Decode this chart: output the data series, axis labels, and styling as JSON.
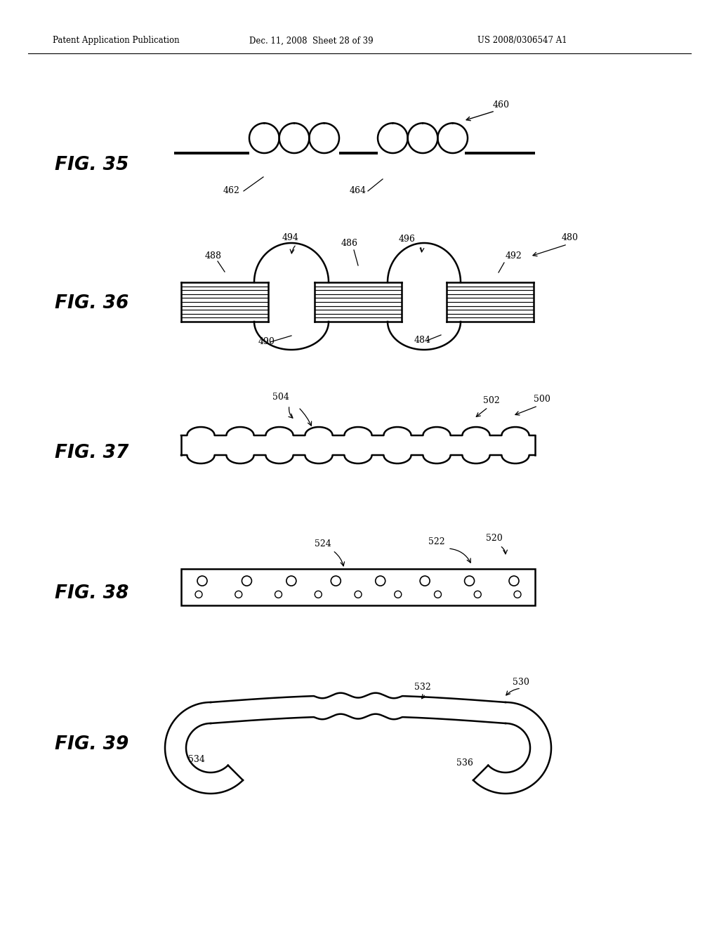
{
  "header_left": "Patent Application Publication",
  "header_mid": "Dec. 11, 2008  Sheet 28 of 39",
  "header_right": "US 2008/0306547 A1",
  "bg_color": "#ffffff",
  "line_color": "#000000"
}
